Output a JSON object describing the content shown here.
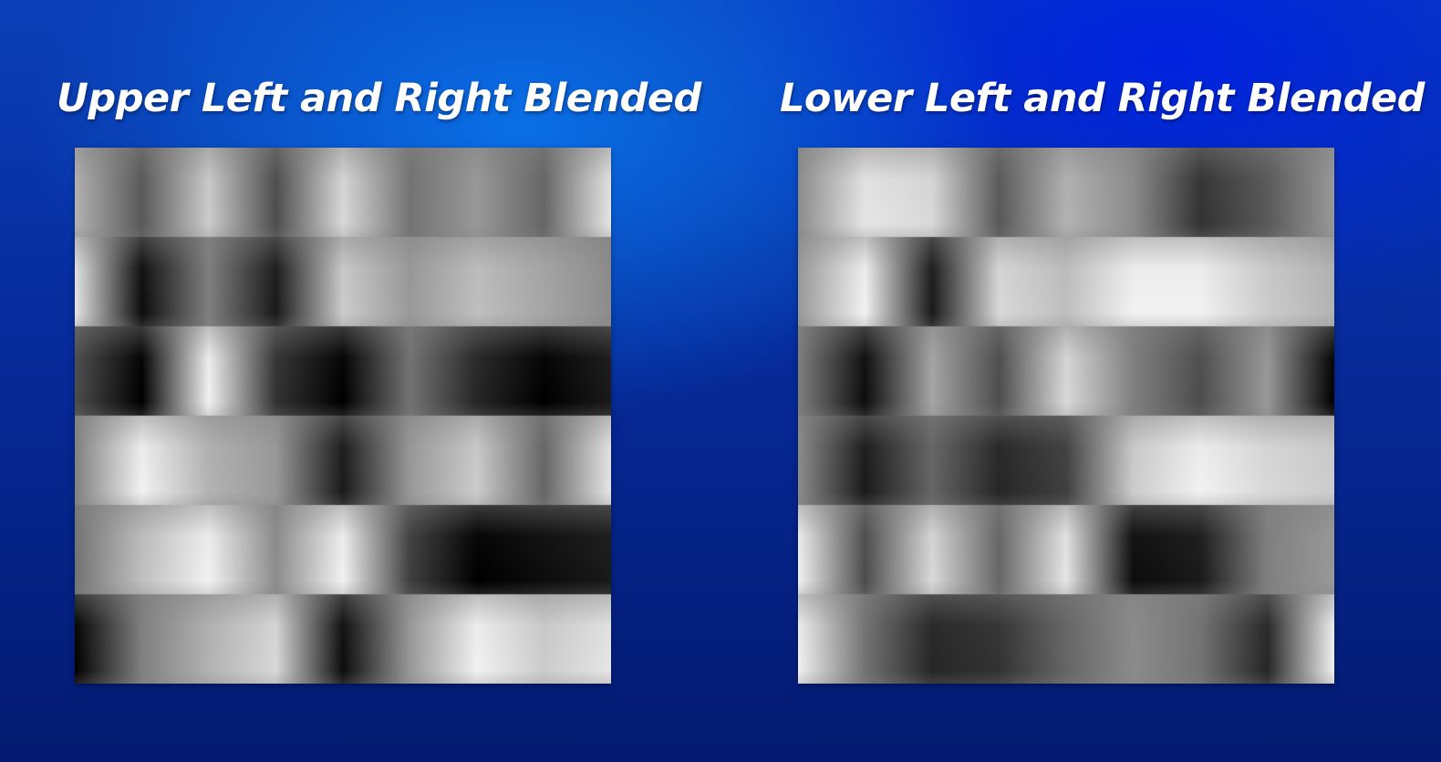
{
  "panels": [
    {
      "title": "Upper Left and Right Blended",
      "texture": {
        "rows": [
          [
            0.7,
            0.35,
            0.8,
            0.3,
            0.85,
            0.45,
            0.6,
            0.4,
            0.9
          ],
          [
            0.9,
            0.05,
            0.5,
            0.1,
            0.8,
            0.6,
            0.75,
            0.65,
            0.55
          ],
          [
            0.3,
            0.0,
            0.95,
            0.2,
            0.0,
            0.45,
            0.15,
            0.0,
            0.1
          ],
          [
            0.5,
            0.95,
            0.7,
            0.6,
            0.1,
            0.6,
            0.8,
            0.4,
            0.9
          ],
          [
            0.45,
            0.75,
            0.95,
            0.55,
            0.95,
            0.25,
            0.0,
            0.05,
            0.1
          ],
          [
            0.0,
            0.5,
            0.7,
            0.85,
            0.05,
            0.6,
            0.95,
            0.8,
            0.9
          ]
        ]
      }
    },
    {
      "title": "Lower Left and Right Blended",
      "texture": {
        "rows": [
          [
            0.55,
            0.9,
            0.85,
            0.35,
            0.7,
            0.55,
            0.2,
            0.35,
            0.6
          ],
          [
            0.6,
            0.95,
            0.1,
            0.85,
            0.75,
            0.95,
            0.95,
            0.8,
            0.7
          ],
          [
            0.5,
            0.05,
            0.65,
            0.3,
            0.85,
            0.5,
            0.3,
            0.6,
            0.0
          ],
          [
            0.55,
            0.1,
            0.4,
            0.15,
            0.25,
            0.8,
            0.95,
            0.85,
            0.8
          ],
          [
            0.95,
            0.3,
            0.85,
            0.4,
            0.9,
            0.05,
            0.1,
            0.5,
            0.6
          ],
          [
            0.95,
            0.45,
            0.15,
            0.2,
            0.4,
            0.55,
            0.45,
            0.15,
            0.95
          ]
        ]
      }
    }
  ],
  "colors": {
    "title_text": "#ffffff",
    "background_primary": "#062a9a",
    "background_highlight": "#0a6fe6"
  }
}
